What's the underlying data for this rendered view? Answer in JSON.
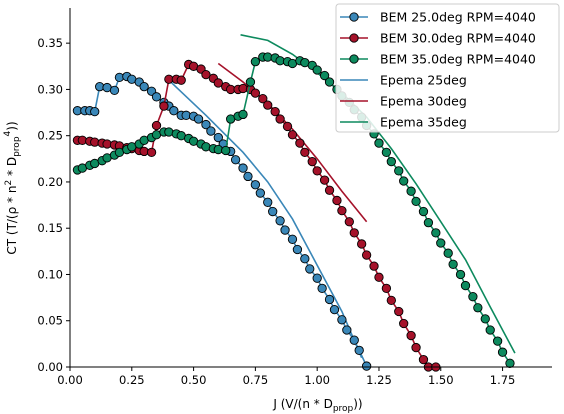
{
  "chart_data": {
    "type": "line",
    "title": "",
    "xlabel": "J (V/(n * D_prop))",
    "xlabel_parts": {
      "prefix": "J (V/(n * D",
      "sub": "prop",
      "suffix": "))"
    },
    "ylabel": "CT (T/(ρ * n^2 * D_prop^4))",
    "ylabel_parts": {
      "prefix": "CT (T/(ρ * n",
      "sup1": "2",
      "mid": " * D",
      "sub": "prop",
      "sup2": "4",
      "suffix": "))"
    },
    "xlim": [
      0.0,
      1.95
    ],
    "ylim": [
      0.0,
      0.388
    ],
    "xticks": [
      0.0,
      0.25,
      0.5,
      0.75,
      1.0,
      1.25,
      1.5,
      1.75
    ],
    "xtick_labels": [
      "0.00",
      "0.25",
      "0.50",
      "0.75",
      "1.00",
      "1.25",
      "1.50",
      "1.75"
    ],
    "yticks": [
      0.0,
      0.05,
      0.1,
      0.15,
      0.2,
      0.25,
      0.3,
      0.35
    ],
    "ytick_labels": [
      "0.00",
      "0.05",
      "0.10",
      "0.15",
      "0.20",
      "0.25",
      "0.30",
      "0.35"
    ],
    "grid": false,
    "legend_position": "top-right",
    "series": [
      {
        "name": "BEM 25.0deg RPM=4040",
        "style": "markers-line",
        "color": "#3a87b8",
        "x": [
          0.03,
          0.06,
          0.08,
          0.1,
          0.12,
          0.15,
          0.18,
          0.2,
          0.23,
          0.25,
          0.28,
          0.3,
          0.33,
          0.35,
          0.38,
          0.4,
          0.42,
          0.45,
          0.47,
          0.5,
          0.52,
          0.55,
          0.57,
          0.6,
          0.62,
          0.65,
          0.67,
          0.7,
          0.72,
          0.75,
          0.77,
          0.8,
          0.82,
          0.85,
          0.87,
          0.9,
          0.92,
          0.95,
          0.97,
          1.0,
          1.02,
          1.05,
          1.07,
          1.1,
          1.12,
          1.15,
          1.17,
          1.2
        ],
        "y": [
          0.277,
          0.277,
          0.277,
          0.276,
          0.303,
          0.302,
          0.299,
          0.313,
          0.314,
          0.311,
          0.308,
          0.303,
          0.298,
          0.292,
          0.286,
          0.282,
          0.277,
          0.272,
          0.272,
          0.271,
          0.268,
          0.262,
          0.255,
          0.248,
          0.241,
          0.233,
          0.224,
          0.215,
          0.206,
          0.197,
          0.188,
          0.178,
          0.168,
          0.158,
          0.148,
          0.138,
          0.127,
          0.117,
          0.106,
          0.096,
          0.085,
          0.073,
          0.062,
          0.051,
          0.04,
          0.029,
          0.018,
          0.001
        ]
      },
      {
        "name": "BEM 30.0deg RPM=4040",
        "style": "markers-line",
        "color": "#a5122a",
        "x": [
          0.03,
          0.05,
          0.08,
          0.1,
          0.13,
          0.15,
          0.18,
          0.2,
          0.23,
          0.25,
          0.28,
          0.3,
          0.33,
          0.35,
          0.38,
          0.4,
          0.43,
          0.45,
          0.48,
          0.5,
          0.53,
          0.55,
          0.58,
          0.6,
          0.63,
          0.65,
          0.68,
          0.7,
          0.73,
          0.75,
          0.78,
          0.8,
          0.83,
          0.85,
          0.88,
          0.9,
          0.93,
          0.95,
          0.98,
          1.0,
          1.03,
          1.05,
          1.08,
          1.1,
          1.13,
          1.15,
          1.18,
          1.2,
          1.23,
          1.25,
          1.28,
          1.3,
          1.33,
          1.35,
          1.38,
          1.4,
          1.43,
          1.45,
          1.48
        ],
        "y": [
          0.245,
          0.245,
          0.244,
          0.243,
          0.242,
          0.241,
          0.24,
          0.239,
          0.237,
          0.236,
          0.234,
          0.233,
          0.232,
          0.261,
          0.282,
          0.311,
          0.311,
          0.31,
          0.327,
          0.325,
          0.322,
          0.316,
          0.312,
          0.307,
          0.303,
          0.3,
          0.3,
          0.301,
          0.3,
          0.296,
          0.29,
          0.283,
          0.276,
          0.268,
          0.26,
          0.251,
          0.242,
          0.232,
          0.222,
          0.212,
          0.202,
          0.191,
          0.18,
          0.169,
          0.157,
          0.145,
          0.133,
          0.121,
          0.109,
          0.097,
          0.085,
          0.072,
          0.06,
          0.047,
          0.034,
          0.021,
          0.008,
          0.0,
          0.0
        ]
      },
      {
        "name": "BEM 35.0deg RPM=4040",
        "style": "markers-line",
        "color": "#0d8a5e",
        "x": [
          0.03,
          0.05,
          0.08,
          0.1,
          0.13,
          0.15,
          0.18,
          0.2,
          0.23,
          0.25,
          0.28,
          0.3,
          0.33,
          0.35,
          0.38,
          0.4,
          0.43,
          0.45,
          0.48,
          0.5,
          0.53,
          0.55,
          0.58,
          0.6,
          0.63,
          0.65,
          0.68,
          0.7,
          0.73,
          0.75,
          0.78,
          0.8,
          0.83,
          0.85,
          0.88,
          0.9,
          0.93,
          0.95,
          0.98,
          1.0,
          1.03,
          1.05,
          1.08,
          1.1,
          1.13,
          1.15,
          1.18,
          1.2,
          1.23,
          1.25,
          1.28,
          1.3,
          1.33,
          1.35,
          1.38,
          1.4,
          1.43,
          1.45,
          1.48,
          1.5,
          1.53,
          1.55,
          1.58,
          1.6,
          1.63,
          1.65,
          1.68,
          1.7,
          1.73,
          1.75,
          1.78
        ],
        "y": [
          0.213,
          0.215,
          0.218,
          0.22,
          0.223,
          0.226,
          0.229,
          0.232,
          0.235,
          0.238,
          0.241,
          0.245,
          0.248,
          0.251,
          0.254,
          0.254,
          0.252,
          0.25,
          0.247,
          0.244,
          0.241,
          0.238,
          0.236,
          0.235,
          0.234,
          0.268,
          0.271,
          0.273,
          0.308,
          0.33,
          0.335,
          0.335,
          0.334,
          0.331,
          0.33,
          0.328,
          0.331,
          0.329,
          0.326,
          0.321,
          0.315,
          0.308,
          0.3,
          0.293,
          0.286,
          0.278,
          0.27,
          0.261,
          0.252,
          0.242,
          0.232,
          0.222,
          0.212,
          0.201,
          0.19,
          0.179,
          0.168,
          0.156,
          0.145,
          0.134,
          0.123,
          0.111,
          0.1,
          0.088,
          0.076,
          0.064,
          0.052,
          0.04,
          0.028,
          0.016,
          0.004
        ]
      },
      {
        "name": "Epema 25deg",
        "style": "line",
        "color": "#3a87b8",
        "x": [
          0.4,
          0.55,
          0.7,
          0.8,
          0.9,
          1.0,
          1.1,
          1.18
        ],
        "y": [
          0.31,
          0.272,
          0.232,
          0.2,
          0.16,
          0.11,
          0.06,
          0.01
        ]
      },
      {
        "name": "Epema 30deg",
        "style": "line",
        "color": "#a5122a",
        "x": [
          0.6,
          0.7,
          0.8,
          0.9,
          1.0,
          1.1,
          1.2
        ],
        "y": [
          0.328,
          0.308,
          0.285,
          0.257,
          0.225,
          0.19,
          0.157
        ]
      },
      {
        "name": "Epema 35deg",
        "style": "line",
        "color": "#0d8a5e",
        "x": [
          0.69,
          0.8,
          0.9,
          1.0,
          1.1,
          1.2,
          1.3,
          1.4,
          1.5,
          1.6,
          1.7,
          1.8
        ],
        "y": [
          0.359,
          0.353,
          0.338,
          0.318,
          0.296,
          0.27,
          0.236,
          0.198,
          0.157,
          0.116,
          0.065,
          0.015
        ]
      }
    ]
  }
}
